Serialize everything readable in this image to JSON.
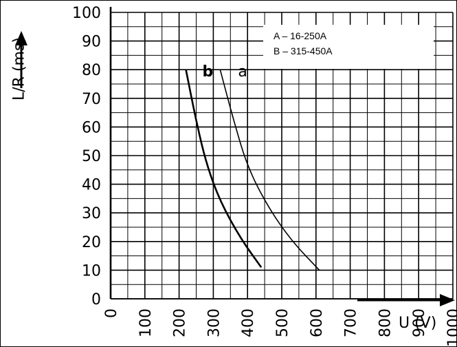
{
  "chart_data": {
    "type": "line",
    "title": "",
    "xlabel": "U (V)",
    "ylabel": "L/R (ms)",
    "xlim": [
      0,
      1000
    ],
    "ylim": [
      0,
      100
    ],
    "grid": true,
    "x_ticks": [
      "0",
      "100",
      "200",
      "300",
      "400",
      "500",
      "600",
      "700",
      "800",
      "900",
      "1000"
    ],
    "y_ticks": [
      "0",
      "10",
      "20",
      "30",
      "40",
      "50",
      "60",
      "70",
      "80",
      "90",
      "100"
    ],
    "series": [
      {
        "name": "b",
        "color": "#000000",
        "points": [
          [
            220,
            80
          ],
          [
            250,
            62
          ],
          [
            280,
            47
          ],
          [
            320,
            34
          ],
          [
            380,
            21
          ],
          [
            440,
            11
          ]
        ]
      },
      {
        "name": "a",
        "color": "#000000",
        "points": [
          [
            320,
            80
          ],
          [
            360,
            62
          ],
          [
            400,
            46
          ],
          [
            460,
            32
          ],
          [
            530,
            20
          ],
          [
            610,
            10
          ]
        ]
      }
    ],
    "annotations": [
      "A – 16-250A",
      "B – 315-450A"
    ]
  }
}
